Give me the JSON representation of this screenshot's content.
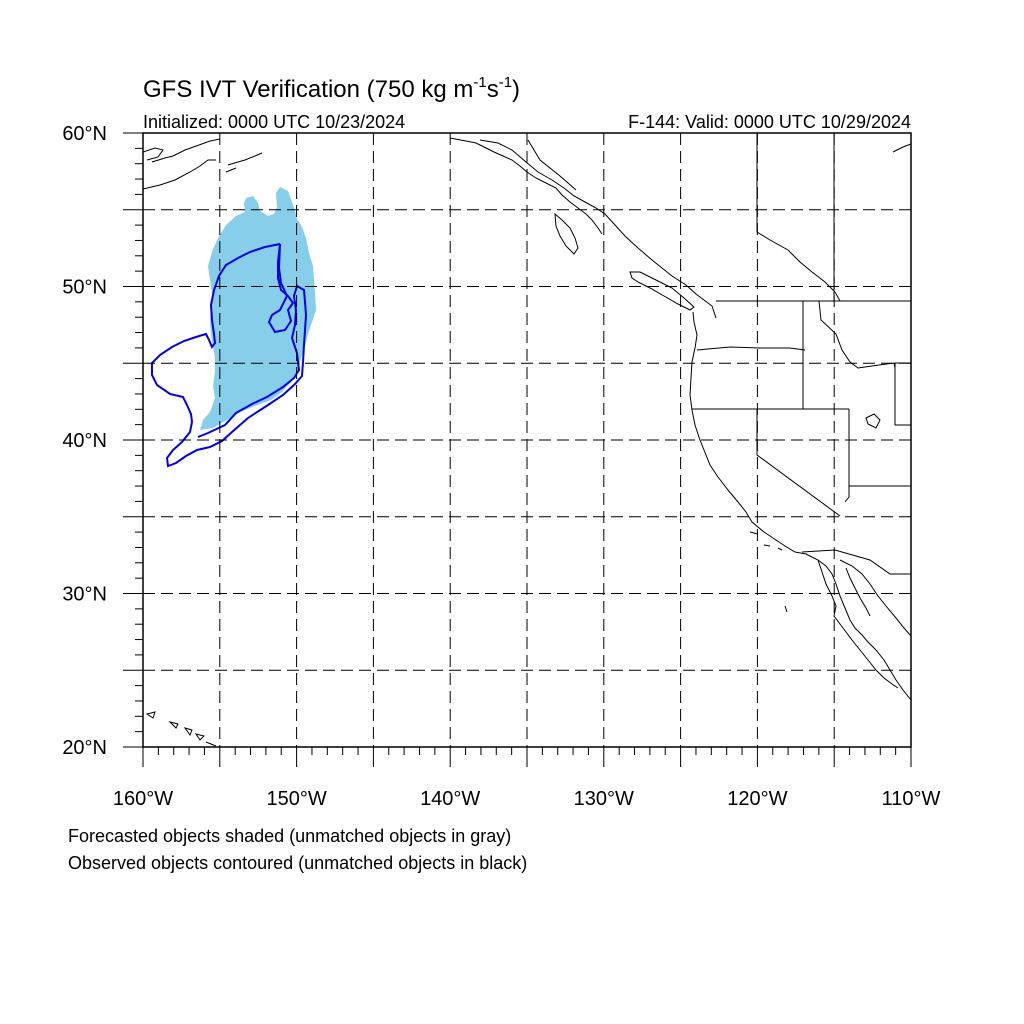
{
  "title": {
    "main": "GFS IVT Verification (750 kg m",
    "sup1": "-1",
    "mid": "s",
    "sup2": "-1",
    "end": ")"
  },
  "subtitle_left": "Initialized: 0000 UTC 10/23/2024",
  "subtitle_right": "F-144: Valid: 0000 UTC 10/29/2024",
  "map": {
    "lon_range": [
      -160,
      -110
    ],
    "lat_range": [
      20,
      60
    ],
    "lon_ticks": [
      {
        "value": -160,
        "label": "160°W"
      },
      {
        "value": -150,
        "label": "150°W"
      },
      {
        "value": -140,
        "label": "140°W"
      },
      {
        "value": -130,
        "label": "130°W"
      },
      {
        "value": -120,
        "label": "120°W"
      },
      {
        "value": -110,
        "label": "110°W"
      }
    ],
    "lat_ticks": [
      {
        "value": 60,
        "label": "60°N"
      },
      {
        "value": 50,
        "label": "50°N"
      },
      {
        "value": 40,
        "label": "40°N"
      },
      {
        "value": 30,
        "label": "30°N"
      },
      {
        "value": 20,
        "label": "20°N"
      }
    ],
    "grid_spacing_deg": 5,
    "grid_style": "dashed",
    "forecast_object_color": "#87CEEB",
    "observed_contour_color": "#0000EE",
    "coastline_color": "#000000"
  },
  "notes": [
    "Forecasted objects shaded (unmatched objects in gray)",
    "Observed objects contoured (unmatched objects in black)"
  ]
}
